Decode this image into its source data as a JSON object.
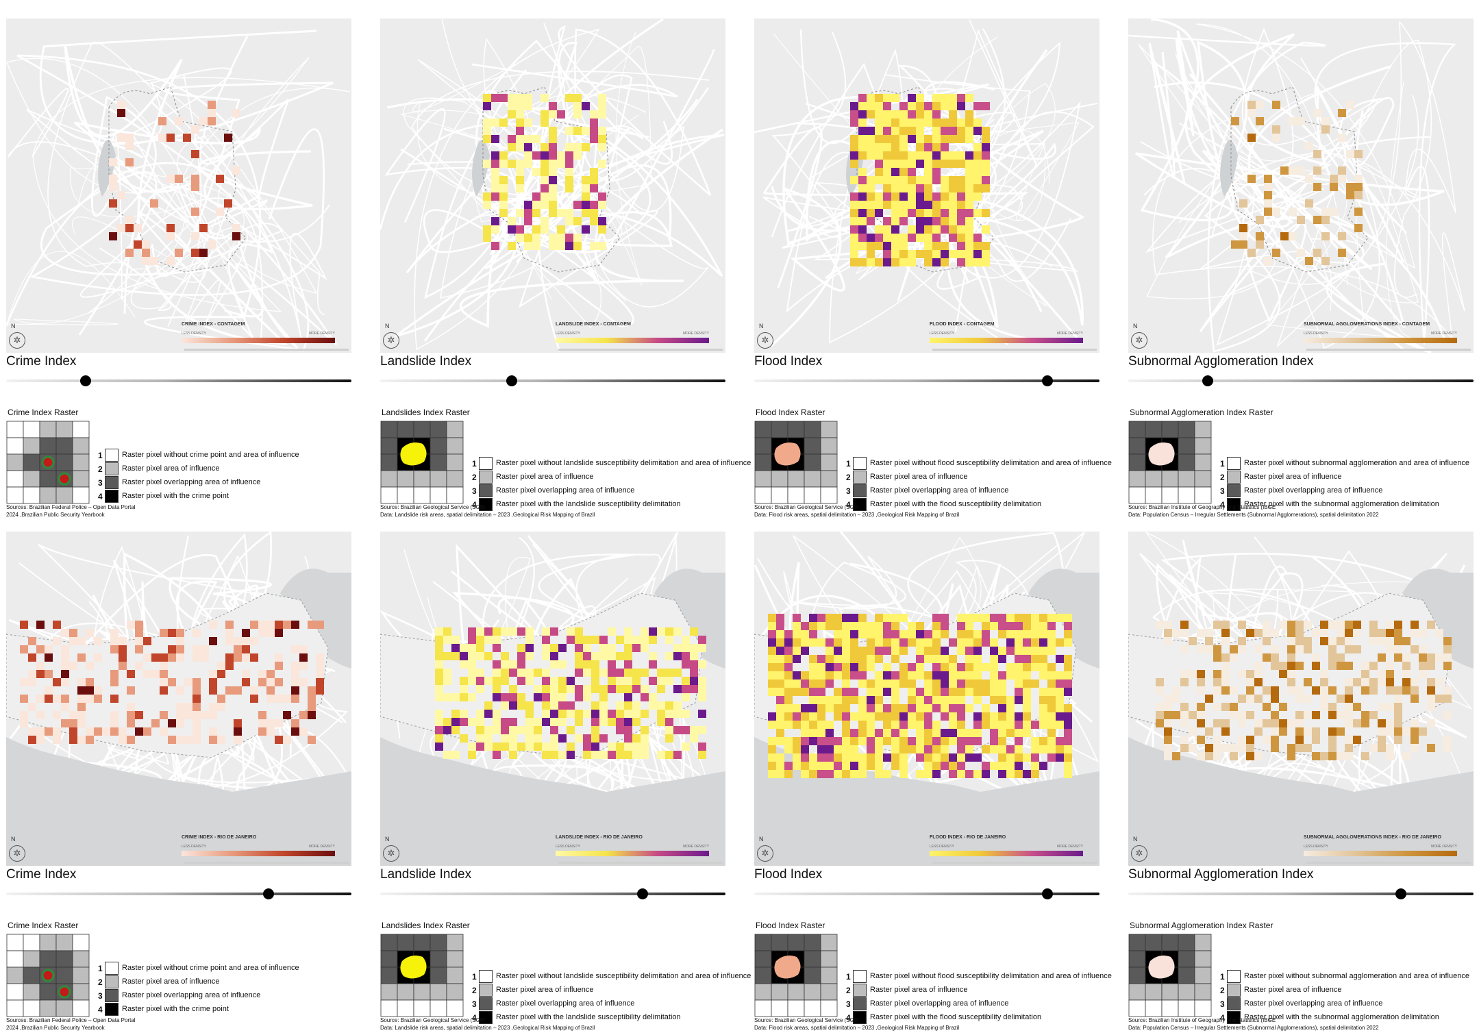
{
  "common": {
    "north": "N",
    "less_density": "LESS DENSITY",
    "more_density": "MORE DENSITY",
    "legend_numbers": [
      "1",
      "2",
      "3",
      "4"
    ]
  },
  "rows": [
    {
      "region": "CONTAGEM",
      "panels": [
        {
          "id": "crime",
          "title": "Crime Index",
          "legend_title": "CRIME INDEX - CONTAGEM",
          "slider_value": 0.23,
          "raster_title": "Crime Index Raster",
          "legend_items": [
            "Raster pixel without crime point and area of influence",
            "Raster pixel area of influence",
            "Raster pixel overlapping area of influence",
            "Raster pixel with the crime point"
          ],
          "source_lines": [
            "Sources: Brazilian Federal Police – Open Data Portal",
            "2024 ,Brazilian Public Security Yearbook"
          ],
          "ramp": [
            "#fbe6dc",
            "#e89a7c",
            "#c0452b",
            "#6b0e0e"
          ]
        },
        {
          "id": "landslide",
          "title": "Landslide Index",
          "legend_title": "LANDSLIDE INDEX - CONTAGEM",
          "slider_value": 0.38,
          "raster_title": "Landslides Index Raster",
          "legend_items": [
            "Raster pixel without landslide susceptibility delimitation and area of influence",
            "Raster pixel area of influence",
            "Raster pixel overlapping area of influence",
            "Raster pixel with the landslide susceptibility delimitation"
          ],
          "source_lines": [
            "Source: Brazilian Geological Service (SGB)",
            "Data: Landslide risk areas, spatial delimitation – 2023 ,Geological Risk Mapping of Brazil"
          ],
          "ramp": [
            "#fff9a6",
            "#f5e44a",
            "#c64a86",
            "#6b1a8c"
          ]
        },
        {
          "id": "flood",
          "title": "Flood Index",
          "legend_title": "FLOOD INDEX - CONTAGEM",
          "slider_value": 0.85,
          "raster_title": "Flood Index Raster",
          "legend_items": [
            "Raster pixel without flood susceptibility delimitation and area of influence",
            "Raster pixel area of influence",
            "Raster pixel overlapping area of influence",
            "Raster pixel with the flood susceptibility delimitation"
          ],
          "source_lines": [
            "Source: Brazilian Geological Service (SGB)",
            "Data: Flood risk areas, spatial delimitation – 2023 ,Geological Risk Mapping of Brazil"
          ],
          "ramp": [
            "#fff46b",
            "#f0c93a",
            "#c84f8a",
            "#6a1a8c"
          ]
        },
        {
          "id": "subnormal",
          "title": "Subnormal Agglomeration Index",
          "legend_title": "SUBNORMAL AGGLOMERATIONS INDEX - CONTAGEM",
          "slider_value": 0.23,
          "raster_title": "Subnormal Agglomeration Index Raster",
          "legend_items": [
            "Raster pixel without subnormal agglomeration and area of influence",
            "Raster pixel area of influence",
            "Raster pixel overlapping area of influence",
            "Raster pixel with the subnormal agglomeration delimitation"
          ],
          "source_lines": [
            "Source: Brazilian Institute of Geography and Statistics (IBGE",
            "Data: Population Census – Irregular Settlements (Subnormal Agglomerations), spatial delimitation 2022"
          ],
          "ramp": [
            "#f6ece0",
            "#e3c59a",
            "#cf9640",
            "#b56a0e"
          ]
        }
      ]
    },
    {
      "region": "RIO DE JANEIRO",
      "panels": [
        {
          "id": "crime",
          "title": "Crime Index",
          "legend_title": "CRIME INDEX - RIO DE JANEIRO",
          "slider_value": 0.76,
          "raster_title": "Crime Index Raster",
          "legend_items": [
            "Raster pixel without crime point and area of influence",
            "Raster pixel area of influence",
            "Raster pixel overlapping area of influence",
            "Raster pixel with the crime point"
          ],
          "source_lines": [
            "Sources: Brazilian Federal Police – Open Data Portal",
            "2024 ,Brazilian Public Security Yearbook"
          ],
          "ramp": [
            "#fbe6dc",
            "#e89a7c",
            "#c0452b",
            "#6b0e0e"
          ]
        },
        {
          "id": "landslide",
          "title": "Landslide Index",
          "legend_title": "LANDSLIDE INDEX - RIO DE JANEIRO",
          "slider_value": 0.76,
          "raster_title": "Landslides Index Raster",
          "legend_items": [
            "Raster pixel without landslide susceptibility delimitation and area of influence",
            "Raster pixel area of influence",
            "Raster pixel overlapping area of influence",
            "Raster pixel with the landslide susceptibility delimitation"
          ],
          "source_lines": [
            "Source: Brazilian Geological Service (SGB)",
            "Data: Landslide risk areas, spatial delimitation – 2023 ,Geological Risk Mapping of Brazil"
          ],
          "ramp": [
            "#fff9a6",
            "#f5e44a",
            "#c64a86",
            "#6b1a8c"
          ]
        },
        {
          "id": "flood",
          "title": "Flood Index",
          "legend_title": "FLOOD INDEX - RIO DE JANEIRO",
          "slider_value": 0.85,
          "raster_title": "Flood Index Raster",
          "legend_items": [
            "Raster pixel without flood susceptibility delimitation and area of influence",
            "Raster pixel area of influence",
            "Raster pixel overlapping area of influence",
            "Raster pixel with the flood susceptibility delimitation"
          ],
          "source_lines": [
            "Source: Brazilian Geological Service (SGB)",
            "Data: Flood risk areas, spatial delimitation – 2023 ,Geological Risk Mapping of Brazil"
          ],
          "ramp": [
            "#fff46b",
            "#f0c93a",
            "#c84f8a",
            "#6a1a8c"
          ]
        },
        {
          "id": "subnormal",
          "title": "Subnormal Agglomeration Index",
          "legend_title": "SUBNORMAL AGGLOMERATIONS INDEX - RIO DE JANEIRO",
          "slider_value": 0.79,
          "raster_title": "Subnormal Agglomeration Index Raster",
          "legend_items": [
            "Raster pixel without subnormal agglomeration and area of influence",
            "Raster pixel area of influence",
            "Raster pixel overlapping area of influence",
            "Raster pixel with the subnormal agglomeration delimitation"
          ],
          "source_lines": [
            "Source: Brazilian Institute of Geography and Statistics (IBGE",
            "Data: Population Census – Irregular Settlements (Subnormal Agglomerations), spatial delimitation 2022"
          ],
          "ramp": [
            "#f6ece0",
            "#e3c59a",
            "#cf9640",
            "#b56a0e"
          ]
        }
      ]
    }
  ]
}
